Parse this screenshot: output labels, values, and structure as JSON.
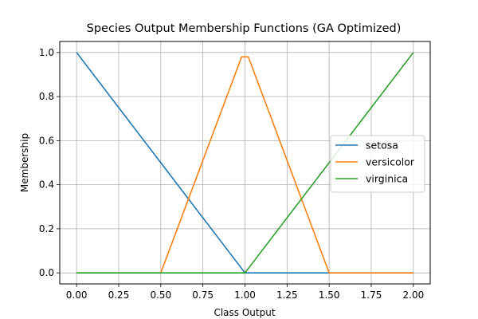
{
  "chart_data": {
    "type": "line",
    "title": "Species Output Membership Functions (GA Optimized)",
    "xlabel": "Class Output",
    "ylabel": "Membership",
    "xlim": [
      -0.1,
      2.1
    ],
    "ylim": [
      -0.05,
      1.05
    ],
    "xticks": [
      0.0,
      0.25,
      0.5,
      0.75,
      1.0,
      1.25,
      1.5,
      1.75,
      2.0
    ],
    "xtick_labels": [
      "0.00",
      "0.25",
      "0.50",
      "0.75",
      "1.00",
      "1.25",
      "1.50",
      "1.75",
      "2.00"
    ],
    "yticks": [
      0.0,
      0.2,
      0.4,
      0.6,
      0.8,
      1.0
    ],
    "ytick_labels": [
      "0.0",
      "0.2",
      "0.4",
      "0.6",
      "0.8",
      "1.0"
    ],
    "grid": true,
    "legend_position": "center-right",
    "series": [
      {
        "name": "setosa",
        "color": "#1f77b4",
        "x": [
          0.0,
          1.0,
          1.5,
          2.0
        ],
        "y": [
          1.0,
          0.0,
          0.0,
          0.0
        ]
      },
      {
        "name": "versicolor",
        "color": "#ff7f0e",
        "x": [
          0.0,
          0.5,
          0.98,
          1.02,
          1.5,
          2.0
        ],
        "y": [
          0.0,
          0.0,
          0.98,
          0.98,
          0.0,
          0.0
        ]
      },
      {
        "name": "virginica",
        "color": "#2ca02c",
        "x": [
          0.0,
          1.0,
          2.0
        ],
        "y": [
          0.0,
          0.0,
          1.0
        ]
      }
    ]
  }
}
